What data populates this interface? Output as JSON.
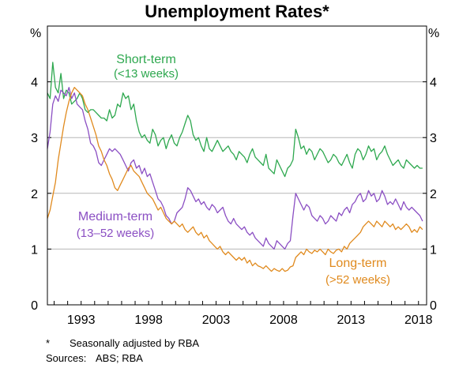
{
  "title": "Unemployment Rates*",
  "footnote": {
    "marker": "*",
    "text": "Seasonally adjusted by RBA"
  },
  "sources": {
    "label": "Sources:",
    "text": "ABS; RBA"
  },
  "chart_data": {
    "type": "line",
    "title": "Unemployment Rates*",
    "xlabel": "",
    "ylabel": "%",
    "xlim": [
      1990.5,
      2018.6
    ],
    "ylim": [
      0,
      5
    ],
    "yticks": [
      0,
      1,
      2,
      3,
      4
    ],
    "xticks": [
      1993,
      1998,
      2003,
      2008,
      2013,
      2018
    ],
    "xtick_labels": [
      "1993",
      "1998",
      "2003",
      "2008",
      "2013",
      "2018"
    ],
    "y_unit_left": "%",
    "y_unit_right": "%",
    "grid": true,
    "series": [
      {
        "name": "Short-term",
        "label_line1": "Short-term",
        "label_line2": "(<13 weeks)",
        "color": "#2ea84f",
        "x": [
          1990.5,
          1990.7,
          1990.9,
          1991.1,
          1991.3,
          1991.5,
          1991.7,
          1991.9,
          1992.1,
          1992.3,
          1992.5,
          1992.7,
          1992.9,
          1993.1,
          1993.3,
          1993.5,
          1993.7,
          1993.9,
          1994.1,
          1994.3,
          1994.5,
          1994.7,
          1994.9,
          1995.1,
          1995.3,
          1995.5,
          1995.7,
          1995.9,
          1996.1,
          1996.3,
          1996.5,
          1996.7,
          1996.9,
          1997.1,
          1997.3,
          1997.5,
          1997.7,
          1997.9,
          1998.1,
          1998.3,
          1998.5,
          1998.7,
          1998.9,
          1999.1,
          1999.3,
          1999.5,
          1999.7,
          1999.9,
          2000.1,
          2000.3,
          2000.5,
          2000.7,
          2000.9,
          2001.1,
          2001.3,
          2001.5,
          2001.7,
          2001.9,
          2002.1,
          2002.3,
          2002.5,
          2002.7,
          2002.9,
          2003.1,
          2003.3,
          2003.5,
          2003.7,
          2003.9,
          2004.1,
          2004.3,
          2004.5,
          2004.7,
          2004.9,
          2005.1,
          2005.3,
          2005.5,
          2005.7,
          2005.9,
          2006.1,
          2006.3,
          2006.5,
          2006.7,
          2006.9,
          2007.1,
          2007.3,
          2007.5,
          2007.7,
          2007.9,
          2008.1,
          2008.3,
          2008.5,
          2008.7,
          2008.9,
          2009.1,
          2009.3,
          2009.5,
          2009.7,
          2009.9,
          2010.1,
          2010.3,
          2010.5,
          2010.7,
          2010.9,
          2011.1,
          2011.3,
          2011.5,
          2011.7,
          2011.9,
          2012.1,
          2012.3,
          2012.5,
          2012.7,
          2012.9,
          2013.1,
          2013.3,
          2013.5,
          2013.7,
          2013.9,
          2014.1,
          2014.3,
          2014.5,
          2014.7,
          2014.9,
          2015.1,
          2015.3,
          2015.5,
          2015.7,
          2015.9,
          2016.1,
          2016.3,
          2016.5,
          2016.7,
          2016.9,
          2017.1,
          2017.3,
          2017.5,
          2017.7,
          2017.9,
          2018.1,
          2018.3
        ],
        "values": [
          3.8,
          3.7,
          4.35,
          3.9,
          3.8,
          4.15,
          3.7,
          3.85,
          3.8,
          3.6,
          3.65,
          3.7,
          3.8,
          3.7,
          3.5,
          3.45,
          3.5,
          3.5,
          3.45,
          3.4,
          3.35,
          3.35,
          3.3,
          3.5,
          3.35,
          3.4,
          3.6,
          3.55,
          3.8,
          3.7,
          3.75,
          3.5,
          3.6,
          3.3,
          3.1,
          3.0,
          3.05,
          2.95,
          2.9,
          3.15,
          3.05,
          2.85,
          2.95,
          3.0,
          2.8,
          2.95,
          3.05,
          2.9,
          2.85,
          3.0,
          3.1,
          3.25,
          3.4,
          3.3,
          3.05,
          2.95,
          3.0,
          2.85,
          2.75,
          3.0,
          2.8,
          2.75,
          2.85,
          2.95,
          2.85,
          2.75,
          2.8,
          2.85,
          2.75,
          2.7,
          2.6,
          2.75,
          2.7,
          2.65,
          2.55,
          2.7,
          2.8,
          2.65,
          2.6,
          2.55,
          2.5,
          2.7,
          2.45,
          2.4,
          2.35,
          2.6,
          2.5,
          2.4,
          2.3,
          2.45,
          2.5,
          2.6,
          3.15,
          3.0,
          2.8,
          2.85,
          2.7,
          2.8,
          2.75,
          2.6,
          2.7,
          2.8,
          2.75,
          2.65,
          2.55,
          2.6,
          2.7,
          2.65,
          2.55,
          2.5,
          2.6,
          2.7,
          2.55,
          2.45,
          2.7,
          2.8,
          2.75,
          2.6,
          2.7,
          2.85,
          2.75,
          2.8,
          2.6,
          2.7,
          2.75,
          2.85,
          2.7,
          2.6,
          2.5,
          2.55,
          2.6,
          2.5,
          2.45,
          2.6,
          2.55,
          2.5,
          2.45,
          2.5,
          2.45,
          2.45
        ]
      },
      {
        "name": "Medium-term",
        "label_line1": "Medium-term",
        "label_line2": "(13–52 weeks)",
        "color": "#8b4fc3",
        "x": [
          1990.5,
          1990.7,
          1990.9,
          1991.1,
          1991.3,
          1991.5,
          1991.7,
          1991.9,
          1992.1,
          1992.3,
          1992.5,
          1992.7,
          1992.9,
          1993.1,
          1993.3,
          1993.5,
          1993.7,
          1993.9,
          1994.1,
          1994.3,
          1994.5,
          1994.7,
          1994.9,
          1995.1,
          1995.3,
          1995.5,
          1995.7,
          1995.9,
          1996.1,
          1996.3,
          1996.5,
          1996.7,
          1996.9,
          1997.1,
          1997.3,
          1997.5,
          1997.7,
          1997.9,
          1998.1,
          1998.3,
          1998.5,
          1998.7,
          1998.9,
          1999.1,
          1999.3,
          1999.5,
          1999.7,
          1999.9,
          2000.1,
          2000.3,
          2000.5,
          2000.7,
          2000.9,
          2001.1,
          2001.3,
          2001.5,
          2001.7,
          2001.9,
          2002.1,
          2002.3,
          2002.5,
          2002.7,
          2002.9,
          2003.1,
          2003.3,
          2003.5,
          2003.7,
          2003.9,
          2004.1,
          2004.3,
          2004.5,
          2004.7,
          2004.9,
          2005.1,
          2005.3,
          2005.5,
          2005.7,
          2005.9,
          2006.1,
          2006.3,
          2006.5,
          2006.7,
          2006.9,
          2007.1,
          2007.3,
          2007.5,
          2007.7,
          2007.9,
          2008.1,
          2008.3,
          2008.5,
          2008.7,
          2008.9,
          2009.1,
          2009.3,
          2009.5,
          2009.7,
          2009.9,
          2010.1,
          2010.3,
          2010.5,
          2010.7,
          2010.9,
          2011.1,
          2011.3,
          2011.5,
          2011.7,
          2011.9,
          2012.1,
          2012.3,
          2012.5,
          2012.7,
          2012.9,
          2013.1,
          2013.3,
          2013.5,
          2013.7,
          2013.9,
          2014.1,
          2014.3,
          2014.5,
          2014.7,
          2014.9,
          2015.1,
          2015.3,
          2015.5,
          2015.7,
          2015.9,
          2016.1,
          2016.3,
          2016.5,
          2016.7,
          2016.9,
          2017.1,
          2017.3,
          2017.5,
          2017.7,
          2017.9,
          2018.1,
          2018.3
        ],
        "values": [
          2.8,
          3.1,
          3.6,
          3.75,
          3.65,
          3.85,
          3.8,
          3.75,
          3.9,
          3.7,
          3.8,
          3.6,
          3.55,
          3.5,
          3.3,
          3.15,
          2.9,
          2.85,
          2.75,
          2.55,
          2.5,
          2.6,
          2.7,
          2.8,
          2.75,
          2.8,
          2.75,
          2.7,
          2.6,
          2.5,
          2.4,
          2.55,
          2.6,
          2.45,
          2.5,
          2.35,
          2.45,
          2.3,
          2.35,
          2.2,
          2.05,
          1.9,
          1.85,
          1.75,
          1.6,
          1.55,
          1.45,
          1.5,
          1.65,
          1.7,
          1.75,
          1.9,
          2.1,
          2.05,
          1.95,
          1.85,
          1.9,
          1.8,
          1.85,
          1.75,
          1.7,
          1.8,
          1.75,
          1.65,
          1.7,
          1.75,
          1.6,
          1.5,
          1.45,
          1.55,
          1.45,
          1.4,
          1.35,
          1.4,
          1.3,
          1.25,
          1.3,
          1.2,
          1.15,
          1.1,
          1.05,
          1.2,
          1.1,
          1.05,
          1.0,
          1.15,
          1.1,
          1.05,
          1.0,
          1.1,
          1.15,
          1.6,
          2.0,
          1.9,
          1.8,
          1.7,
          1.8,
          1.75,
          1.6,
          1.55,
          1.5,
          1.6,
          1.55,
          1.45,
          1.5,
          1.6,
          1.55,
          1.5,
          1.65,
          1.6,
          1.7,
          1.75,
          1.65,
          1.8,
          1.85,
          1.95,
          2.0,
          1.85,
          1.9,
          2.05,
          1.95,
          2.0,
          1.85,
          1.9,
          2.05,
          1.95,
          1.8,
          1.85,
          1.8,
          1.9,
          1.8,
          1.7,
          1.85,
          1.75,
          1.7,
          1.75,
          1.7,
          1.65,
          1.6,
          1.5
        ]
      },
      {
        "name": "Long-term",
        "label_line1": "Long-term",
        "label_line2": "(>52 weeks)",
        "color": "#e08a1e",
        "x": [
          1990.5,
          1990.7,
          1990.9,
          1991.1,
          1991.3,
          1991.5,
          1991.7,
          1991.9,
          1992.1,
          1992.3,
          1992.5,
          1992.7,
          1992.9,
          1993.1,
          1993.3,
          1993.5,
          1993.7,
          1993.9,
          1994.1,
          1994.3,
          1994.5,
          1994.7,
          1994.9,
          1995.1,
          1995.3,
          1995.5,
          1995.7,
          1995.9,
          1996.1,
          1996.3,
          1996.5,
          1996.7,
          1996.9,
          1997.1,
          1997.3,
          1997.5,
          1997.7,
          1997.9,
          1998.1,
          1998.3,
          1998.5,
          1998.7,
          1998.9,
          1999.1,
          1999.3,
          1999.5,
          1999.7,
          1999.9,
          2000.1,
          2000.3,
          2000.5,
          2000.7,
          2000.9,
          2001.1,
          2001.3,
          2001.5,
          2001.7,
          2001.9,
          2002.1,
          2002.3,
          2002.5,
          2002.7,
          2002.9,
          2003.1,
          2003.3,
          2003.5,
          2003.7,
          2003.9,
          2004.1,
          2004.3,
          2004.5,
          2004.7,
          2004.9,
          2005.1,
          2005.3,
          2005.5,
          2005.7,
          2005.9,
          2006.1,
          2006.3,
          2006.5,
          2006.7,
          2006.9,
          2007.1,
          2007.3,
          2007.5,
          2007.7,
          2007.9,
          2008.1,
          2008.3,
          2008.5,
          2008.7,
          2008.9,
          2009.1,
          2009.3,
          2009.5,
          2009.7,
          2009.9,
          2010.1,
          2010.3,
          2010.5,
          2010.7,
          2010.9,
          2011.1,
          2011.3,
          2011.5,
          2011.7,
          2011.9,
          2012.1,
          2012.3,
          2012.5,
          2012.7,
          2012.9,
          2013.1,
          2013.3,
          2013.5,
          2013.7,
          2013.9,
          2014.1,
          2014.3,
          2014.5,
          2014.7,
          2014.9,
          2015.1,
          2015.3,
          2015.5,
          2015.7,
          2015.9,
          2016.1,
          2016.3,
          2016.5,
          2016.7,
          2016.9,
          2017.1,
          2017.3,
          2017.5,
          2017.7,
          2017.9,
          2018.1,
          2018.3
        ],
        "values": [
          1.55,
          1.7,
          1.95,
          2.2,
          2.6,
          2.9,
          3.2,
          3.45,
          3.65,
          3.8,
          3.9,
          3.85,
          3.8,
          3.75,
          3.6,
          3.5,
          3.35,
          3.2,
          3.05,
          2.85,
          2.75,
          2.6,
          2.5,
          2.35,
          2.25,
          2.1,
          2.05,
          2.15,
          2.25,
          2.35,
          2.45,
          2.5,
          2.4,
          2.35,
          2.3,
          2.2,
          2.1,
          2.0,
          1.95,
          1.9,
          1.8,
          1.7,
          1.75,
          1.65,
          1.55,
          1.5,
          1.45,
          1.5,
          1.45,
          1.4,
          1.45,
          1.35,
          1.3,
          1.35,
          1.4,
          1.3,
          1.25,
          1.3,
          1.2,
          1.25,
          1.15,
          1.1,
          1.05,
          1.0,
          1.05,
          0.95,
          0.9,
          0.95,
          0.9,
          0.85,
          0.8,
          0.85,
          0.8,
          0.85,
          0.75,
          0.8,
          0.7,
          0.75,
          0.7,
          0.68,
          0.65,
          0.7,
          0.65,
          0.6,
          0.65,
          0.62,
          0.6,
          0.65,
          0.6,
          0.62,
          0.68,
          0.7,
          0.85,
          0.9,
          0.95,
          0.9,
          1.0,
          0.95,
          0.92,
          0.98,
          0.95,
          1.0,
          0.95,
          0.9,
          1.0,
          0.95,
          0.92,
          0.98,
          1.0,
          0.95,
          1.05,
          1.0,
          1.1,
          1.15,
          1.2,
          1.25,
          1.3,
          1.4,
          1.45,
          1.5,
          1.45,
          1.4,
          1.5,
          1.45,
          1.4,
          1.5,
          1.45,
          1.4,
          1.45,
          1.35,
          1.4,
          1.35,
          1.4,
          1.45,
          1.4,
          1.3,
          1.35,
          1.3,
          1.4,
          1.35
        ]
      }
    ]
  }
}
